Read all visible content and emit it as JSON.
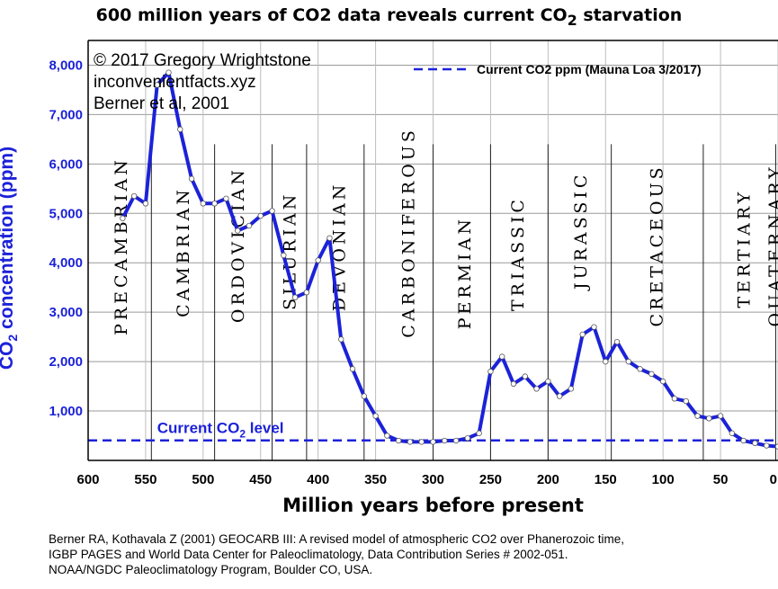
{
  "chart_data": {
    "type": "line",
    "title": "600 million years of CO2 data reveals current CO",
    "title_sub": "2",
    "title_end": " starvation",
    "xlabel": "Million years before present",
    "ylabel": "CO",
    "ylabel_sub": "2",
    "ylabel_end": " concentration (ppm)",
    "x_reversed": true,
    "xlim": [
      600,
      0
    ],
    "ylim": [
      0,
      8500
    ],
    "x_ticks": [
      "600",
      "550",
      "500",
      "450",
      "400",
      "350",
      "300",
      "250",
      "200",
      "150",
      "100",
      "50",
      "0"
    ],
    "y_ticks": [
      "1,000",
      "2,000",
      "3,000",
      "4,000",
      "5,000",
      "6,000",
      "7,000",
      "8,000"
    ],
    "y_tick_values": [
      1000,
      2000,
      3000,
      4000,
      5000,
      6000,
      7000,
      8000
    ],
    "x_tick_values": [
      600,
      550,
      500,
      450,
      400,
      350,
      300,
      250,
      200,
      150,
      100,
      50,
      0
    ],
    "grid": true,
    "series": [
      {
        "name": "",
        "color": "#1c22d8",
        "x": [
          570,
          560,
          550,
          540,
          530,
          520,
          510,
          500,
          490,
          480,
          470,
          460,
          450,
          440,
          430,
          420,
          410,
          400,
          390,
          380,
          370,
          360,
          350,
          340,
          330,
          320,
          310,
          300,
          290,
          280,
          270,
          260,
          250,
          240,
          230,
          220,
          210,
          200,
          190,
          180,
          170,
          160,
          150,
          140,
          130,
          120,
          110,
          100,
          90,
          80,
          70,
          60,
          50,
          40,
          30,
          20,
          10,
          0
        ],
        "y": [
          4900,
          5350,
          5200,
          7600,
          7850,
          6700,
          5700,
          5200,
          5200,
          5300,
          4650,
          4750,
          4950,
          5050,
          4150,
          3300,
          3400,
          4050,
          4500,
          2450,
          1850,
          1300,
          900,
          500,
          400,
          375,
          375,
          375,
          400,
          400,
          450,
          550,
          1800,
          2100,
          1550,
          1700,
          1450,
          1600,
          1300,
          1450,
          2550,
          2700,
          2000,
          2400,
          2000,
          1850,
          1750,
          1600,
          1250,
          1200,
          900,
          850,
          900,
          550,
          400,
          350,
          300,
          280
        ]
      }
    ],
    "reference_line": {
      "value": 405,
      "color": "#1c22d8",
      "style": "dashed"
    },
    "legend": {
      "position": "top-right",
      "label": "Current CO2 ppm (Mauna Loa 3/2017)"
    },
    "current_level_label": "Current CO",
    "current_level_sub": "2",
    "current_level_end": " level",
    "periods": [
      {
        "name": "PRECAMBRIAN",
        "center": 572,
        "top_value": 6150
      },
      {
        "name": "CAMBRIAN",
        "center": 518,
        "top_value": 5550
      },
      {
        "name": "ORDOVICIAN",
        "center": 470,
        "top_value": 5950
      },
      {
        "name": "SILURIAN",
        "center": 425,
        "top_value": 5450
      },
      {
        "name": "DEVONIAN",
        "center": 382,
        "top_value": 5650
      },
      {
        "name": "CARBONIFEROUS",
        "center": 322,
        "top_value": 6750
      },
      {
        "name": "PERMIAN",
        "center": 273,
        "top_value": 4950
      },
      {
        "name": "TRIASSIC",
        "center": 227,
        "top_value": 5350
      },
      {
        "name": "JURASSIC",
        "center": 172,
        "top_value": 5850
      },
      {
        "name": "CRETACEOUS",
        "center": 106,
        "top_value": 6000
      },
      {
        "name": "TERTIARY",
        "center": 30,
        "top_value": 5500
      },
      {
        "name": "QUATERNARY",
        "center": 3,
        "top_value": 6000
      }
    ],
    "boundaries": [
      545,
      490,
      440,
      410,
      360,
      300,
      250,
      200,
      145,
      65,
      2
    ],
    "annotations": [
      "© 2017 Gregory Wrightstone",
      "inconvenientfacts.xyz",
      "Berner et al, 2001"
    ]
  },
  "source": {
    "line1": "Berner RA, Kothavala Z (2001) GEOCARB III: A revised model of atmospheric CO2 over Phanerozoic time,",
    "line2": "IGBP PAGES and World Data Center for Paleoclimatology, Data Contribution Series # 2002-051.",
    "line3": "NOAA/NGDC Paleoclimatology Program, Boulder CO, USA."
  }
}
